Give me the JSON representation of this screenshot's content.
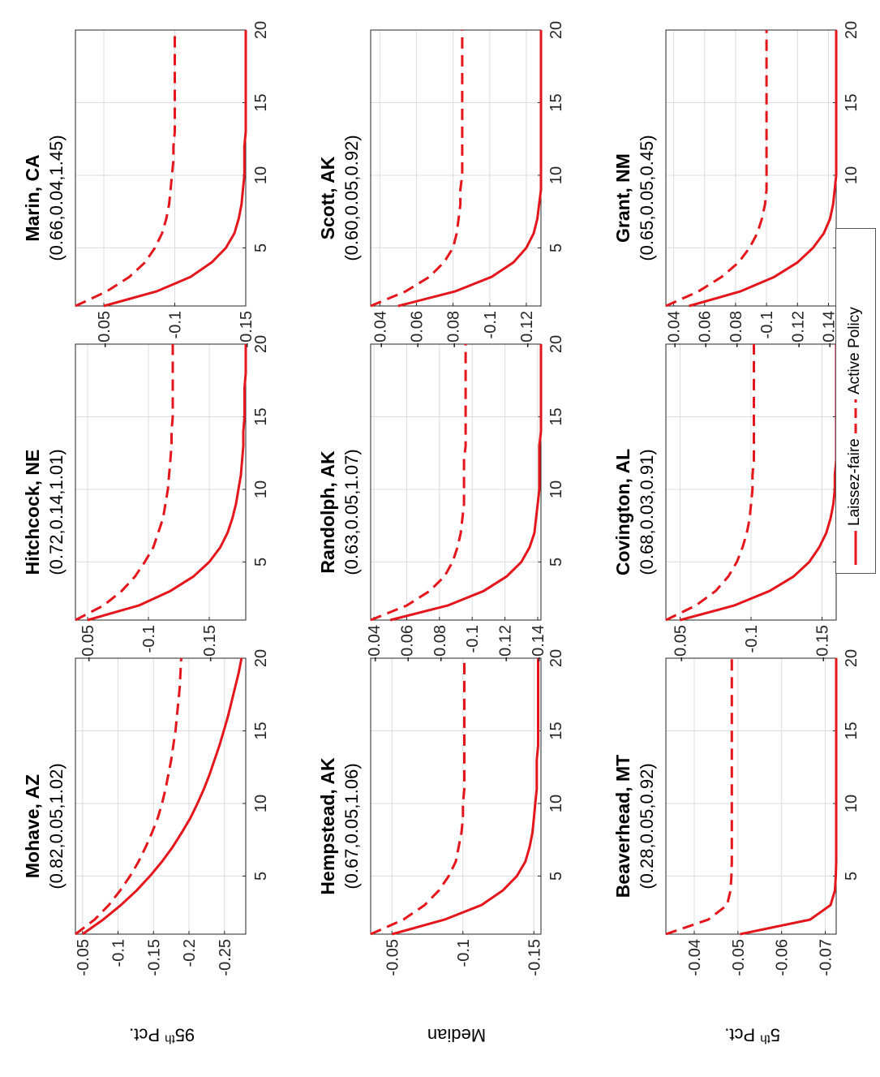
{
  "legend": {
    "solid_label": "Laissez-faire",
    "dashed_label": "Active Policy"
  },
  "colors": {
    "line": "#e5161b",
    "grid": "#dcdcdc",
    "axis": "#262626"
  },
  "row_labels": {
    "top": "95th Pct.",
    "top_base": "95",
    "top_sup": "th",
    "top_tail": " Pct.",
    "middle": "Median",
    "bottom": "5th Pct.",
    "bottom_base": "5",
    "bottom_sup": "th",
    "bottom_tail": " Pct."
  },
  "chart_data": [
    {
      "type": "line",
      "title": "Mohave, AZ",
      "subtitle": "(0.82,0.05,1.02)",
      "xlim": [
        1,
        20
      ],
      "ylim": [
        -0.28,
        -0.04
      ],
      "x_ticks": [
        5,
        10,
        15,
        20
      ],
      "x_tick_labels": [
        "5",
        "10",
        "15",
        "20"
      ],
      "y_ticks": [
        -0.05,
        -0.1,
        -0.15,
        -0.2,
        -0.25
      ],
      "y_tick_labels": [
        "-0.05",
        "-0.1",
        "-0.15",
        "-0.2",
        "-0.25"
      ],
      "grid": true,
      "x": [
        1,
        2,
        3,
        4,
        5,
        6,
        7,
        8,
        9,
        10,
        11,
        12,
        13,
        14,
        15,
        16,
        17,
        18,
        19,
        20
      ],
      "series": [
        {
          "name": "Laissez-faire",
          "style": "solid",
          "values": [
            -0.05,
            -0.079,
            -0.104,
            -0.126,
            -0.145,
            -0.162,
            -0.177,
            -0.19,
            -0.202,
            -0.212,
            -0.221,
            -0.229,
            -0.236,
            -0.243,
            -0.249,
            -0.255,
            -0.26,
            -0.265,
            -0.27,
            -0.274
          ]
        },
        {
          "name": "Active Policy",
          "style": "dashed",
          "values": [
            -0.04,
            -0.067,
            -0.087,
            -0.103,
            -0.117,
            -0.129,
            -0.139,
            -0.148,
            -0.156,
            -0.162,
            -0.167,
            -0.171,
            -0.175,
            -0.178,
            -0.181,
            -0.183,
            -0.185,
            -0.187,
            -0.188,
            -0.189
          ]
        }
      ]
    },
    {
      "type": "line",
      "title": "Hitchcock, NE",
      "subtitle": "(0.72,0.14,1.01)",
      "xlim": [
        1,
        20
      ],
      "ylim": [
        -0.18,
        -0.04
      ],
      "x_ticks": [
        5,
        10,
        15,
        20
      ],
      "x_tick_labels": [
        "5",
        "10",
        "15",
        "20"
      ],
      "y_ticks": [
        -0.05,
        -0.1,
        -0.15
      ],
      "y_tick_labels": [
        "-0.05",
        "-0.1",
        "-0.15"
      ],
      "grid": true,
      "x": [
        1,
        2,
        3,
        4,
        5,
        6,
        7,
        8,
        9,
        10,
        11,
        12,
        13,
        14,
        15,
        16,
        17,
        18,
        19,
        20
      ],
      "series": [
        {
          "name": "Laissez-faire",
          "style": "solid",
          "values": [
            -0.05,
            -0.092,
            -0.118,
            -0.137,
            -0.15,
            -0.159,
            -0.165,
            -0.169,
            -0.172,
            -0.174,
            -0.176,
            -0.177,
            -0.178,
            -0.178,
            -0.179,
            -0.179,
            -0.179,
            -0.18,
            -0.18,
            -0.18
          ]
        },
        {
          "name": "Active Policy",
          "style": "dashed",
          "values": [
            -0.04,
            -0.063,
            -0.078,
            -0.089,
            -0.097,
            -0.104,
            -0.108,
            -0.112,
            -0.114,
            -0.116,
            -0.117,
            -0.118,
            -0.119,
            -0.119,
            -0.12,
            -0.12,
            -0.12,
            -0.12,
            -0.12,
            -0.12
          ]
        }
      ]
    },
    {
      "type": "line",
      "title": "Marin, CA",
      "subtitle": "(0.66,0.04,1.45)",
      "xlim": [
        1,
        20
      ],
      "ylim": [
        -0.15,
        -0.03
      ],
      "x_ticks": [
        5,
        10,
        15,
        20
      ],
      "x_tick_labels": [
        "5",
        "10",
        "15",
        "20"
      ],
      "y_ticks": [
        -0.05,
        -0.1,
        -0.15
      ],
      "y_tick_labels": [
        "-0.05",
        "-0.1",
        "-0.15"
      ],
      "grid": true,
      "x": [
        1,
        2,
        3,
        4,
        5,
        6,
        7,
        8,
        9,
        10,
        11,
        12,
        13,
        14,
        15,
        16,
        17,
        18,
        19,
        20
      ],
      "series": [
        {
          "name": "Laissez-faire",
          "style": "solid",
          "values": [
            -0.05,
            -0.087,
            -0.111,
            -0.126,
            -0.136,
            -0.142,
            -0.145,
            -0.147,
            -0.148,
            -0.149,
            -0.149,
            -0.149,
            -0.15,
            -0.15,
            -0.15,
            -0.15,
            -0.15,
            -0.15,
            -0.15,
            -0.15
          ]
        },
        {
          "name": "Active Policy",
          "style": "dashed",
          "values": [
            -0.03,
            -0.052,
            -0.068,
            -0.079,
            -0.086,
            -0.091,
            -0.094,
            -0.096,
            -0.097,
            -0.098,
            -0.099,
            -0.099,
            -0.1,
            -0.1,
            -0.1,
            -0.1,
            -0.1,
            -0.1,
            -0.1,
            -0.1
          ]
        }
      ]
    },
    {
      "type": "line",
      "title": "Hempstead, AK",
      "subtitle": "(0.67,0.05,1.06)",
      "xlim": [
        1,
        20
      ],
      "ylim": [
        -0.155,
        -0.035
      ],
      "x_ticks": [
        5,
        10,
        15,
        20
      ],
      "x_tick_labels": [
        "5",
        "10",
        "15",
        "20"
      ],
      "y_ticks": [
        -0.05,
        -0.1,
        -0.15
      ],
      "y_tick_labels": [
        "-0.05",
        "-0.1",
        "-0.15"
      ],
      "grid": true,
      "x": [
        1,
        2,
        3,
        4,
        5,
        6,
        7,
        8,
        9,
        10,
        11,
        12,
        13,
        14,
        15,
        16,
        17,
        18,
        19,
        20
      ],
      "series": [
        {
          "name": "Laissez-faire",
          "style": "solid",
          "values": [
            -0.05,
            -0.087,
            -0.113,
            -0.128,
            -0.138,
            -0.144,
            -0.147,
            -0.149,
            -0.15,
            -0.151,
            -0.152,
            -0.152,
            -0.152,
            -0.153,
            -0.153,
            -0.153,
            -0.153,
            -0.153,
            -0.153,
            -0.153
          ]
        },
        {
          "name": "Active Policy",
          "style": "dashed",
          "values": [
            -0.035,
            -0.058,
            -0.073,
            -0.083,
            -0.09,
            -0.095,
            -0.097,
            -0.099,
            -0.1,
            -0.1,
            -0.101,
            -0.101,
            -0.101,
            -0.101,
            -0.101,
            -0.101,
            -0.101,
            -0.101,
            -0.101,
            -0.101
          ]
        }
      ]
    },
    {
      "type": "line",
      "title": "Randolph, AK",
      "subtitle": "(0.63,0.05,1.07)",
      "xlim": [
        1,
        20
      ],
      "ylim": [
        -0.142,
        -0.038
      ],
      "x_ticks": [
        5,
        10,
        15,
        20
      ],
      "x_tick_labels": [
        "5",
        "10",
        "15",
        "20"
      ],
      "y_ticks": [
        -0.04,
        -0.06,
        -0.08,
        -0.1,
        -0.12,
        -0.14
      ],
      "y_tick_labels": [
        "-0.04",
        "-0.06",
        "-0.08",
        "-0.1",
        "-0.12",
        "-0.14"
      ],
      "grid": true,
      "x": [
        1,
        2,
        3,
        4,
        5,
        6,
        7,
        8,
        9,
        10,
        11,
        12,
        13,
        14,
        15,
        16,
        17,
        18,
        19,
        20
      ],
      "series": [
        {
          "name": "Laissez-faire",
          "style": "solid",
          "values": [
            -0.05,
            -0.085,
            -0.107,
            -0.121,
            -0.13,
            -0.135,
            -0.138,
            -0.139,
            -0.14,
            -0.141,
            -0.141,
            -0.141,
            -0.141,
            -0.142,
            -0.142,
            -0.142,
            -0.142,
            -0.142,
            -0.142,
            -0.142
          ]
        },
        {
          "name": "Active Policy",
          "style": "dashed",
          "values": [
            -0.038,
            -0.06,
            -0.074,
            -0.083,
            -0.088,
            -0.091,
            -0.093,
            -0.094,
            -0.095,
            -0.095,
            -0.095,
            -0.095,
            -0.096,
            -0.096,
            -0.096,
            -0.096,
            -0.096,
            -0.096,
            -0.096,
            -0.096
          ]
        }
      ]
    },
    {
      "type": "line",
      "title": "Scott, AK",
      "subtitle": "(0.60,0.05,0.92)",
      "xlim": [
        1,
        20
      ],
      "ylim": [
        -0.128,
        -0.035
      ],
      "x_ticks": [
        5,
        10,
        15,
        20
      ],
      "x_tick_labels": [
        "5",
        "10",
        "15",
        "20"
      ],
      "y_ticks": [
        -0.04,
        -0.06,
        -0.08,
        -0.1,
        -0.12
      ],
      "y_tick_labels": [
        "-0.04",
        "-0.06",
        "-0.08",
        "-0.1",
        "-0.12"
      ],
      "grid": true,
      "x": [
        1,
        2,
        3,
        4,
        5,
        6,
        7,
        8,
        9,
        10,
        11,
        12,
        13,
        14,
        15,
        16,
        17,
        18,
        19,
        20
      ],
      "series": [
        {
          "name": "Laissez-faire",
          "style": "solid",
          "values": [
            -0.05,
            -0.081,
            -0.101,
            -0.113,
            -0.12,
            -0.124,
            -0.126,
            -0.127,
            -0.128,
            -0.128,
            -0.128,
            -0.128,
            -0.128,
            -0.128,
            -0.128,
            -0.128,
            -0.128,
            -0.128,
            -0.128,
            -0.128
          ]
        },
        {
          "name": "Active Policy",
          "style": "dashed",
          "values": [
            -0.035,
            -0.054,
            -0.067,
            -0.075,
            -0.08,
            -0.082,
            -0.083,
            -0.084,
            -0.084,
            -0.085,
            -0.085,
            -0.085,
            -0.085,
            -0.085,
            -0.085,
            -0.085,
            -0.085,
            -0.085,
            -0.085,
            -0.085
          ]
        }
      ]
    },
    {
      "type": "line",
      "title": "Beaverhead, MT",
      "subtitle": "(0.28,0.05,0.92)",
      "xlim": [
        1,
        20
      ],
      "ylim": [
        -0.0725,
        -0.0335
      ],
      "x_ticks": [
        5,
        10,
        15,
        20
      ],
      "x_tick_labels": [
        "5",
        "10",
        "15",
        "20"
      ],
      "y_ticks": [
        -0.04,
        -0.05,
        -0.06,
        -0.07
      ],
      "y_tick_labels": [
        "-0.04",
        "-0.05",
        "-0.06",
        "-0.07"
      ],
      "grid": true,
      "x": [
        1,
        2,
        3,
        4,
        5,
        6,
        7,
        8,
        9,
        10,
        11,
        12,
        13,
        14,
        15,
        16,
        17,
        18,
        19,
        20
      ],
      "series": [
        {
          "name": "Laissez-faire",
          "style": "solid",
          "values": [
            -0.0505,
            -0.0665,
            -0.0712,
            -0.0722,
            -0.0724,
            -0.0725,
            -0.0725,
            -0.0725,
            -0.0725,
            -0.0725,
            -0.0725,
            -0.0725,
            -0.0725,
            -0.0725,
            -0.0725,
            -0.0725,
            -0.0725,
            -0.0725,
            -0.0725,
            -0.0725
          ]
        },
        {
          "name": "Active Policy",
          "style": "dashed",
          "values": [
            -0.0335,
            -0.0432,
            -0.0475,
            -0.0483,
            -0.0485,
            -0.0486,
            -0.0486,
            -0.0486,
            -0.0486,
            -0.0486,
            -0.0486,
            -0.0486,
            -0.0486,
            -0.0486,
            -0.0486,
            -0.0486,
            -0.0486,
            -0.0486,
            -0.0486,
            -0.0486
          ]
        }
      ]
    },
    {
      "type": "line",
      "title": "Covington, AL",
      "subtitle": "(0.68,0.03,0.91)",
      "xlim": [
        1,
        20
      ],
      "ylim": [
        -0.16,
        -0.04
      ],
      "x_ticks": [
        5,
        10,
        15,
        20
      ],
      "x_tick_labels": [
        "5",
        "10",
        "15",
        "20"
      ],
      "y_ticks": [
        -0.05,
        -0.1,
        -0.15
      ],
      "y_tick_labels": [
        "-0.05",
        "-0.1",
        "-0.15"
      ],
      "grid": true,
      "x": [
        1,
        2,
        3,
        4,
        5,
        6,
        7,
        8,
        9,
        10,
        11,
        12,
        13,
        14,
        15,
        16,
        17,
        18,
        19,
        20
      ],
      "series": [
        {
          "name": "Laissez-faire",
          "style": "solid",
          "values": [
            -0.05,
            -0.088,
            -0.113,
            -0.13,
            -0.141,
            -0.148,
            -0.153,
            -0.156,
            -0.158,
            -0.159,
            -0.159,
            -0.16,
            -0.16,
            -0.16,
            -0.16,
            -0.16,
            -0.16,
            -0.16,
            -0.16,
            -0.16
          ]
        },
        {
          "name": "Active Policy",
          "style": "dashed",
          "values": [
            -0.04,
            -0.061,
            -0.075,
            -0.084,
            -0.09,
            -0.094,
            -0.097,
            -0.099,
            -0.1,
            -0.101,
            -0.101,
            -0.102,
            -0.102,
            -0.102,
            -0.102,
            -0.102,
            -0.102,
            -0.102,
            -0.102,
            -0.102
          ]
        }
      ]
    },
    {
      "type": "line",
      "title": "Grant, NM",
      "subtitle": "(0.65,0.05,0.45)",
      "xlim": [
        1,
        20
      ],
      "ylim": [
        -0.145,
        -0.035
      ],
      "x_ticks": [
        5,
        10,
        15,
        20
      ],
      "x_tick_labels": [
        "5",
        "10",
        "15",
        "20"
      ],
      "y_ticks": [
        -0.04,
        -0.06,
        -0.08,
        -0.1,
        -0.12,
        -0.14
      ],
      "y_tick_labels": [
        "-0.04",
        "-0.06",
        "-0.08",
        "-0.1",
        "-0.12",
        "-0.14"
      ],
      "grid": true,
      "x": [
        1,
        2,
        3,
        4,
        5,
        6,
        7,
        8,
        9,
        10,
        11,
        12,
        13,
        14,
        15,
        16,
        17,
        18,
        19,
        20
      ],
      "series": [
        {
          "name": "Laissez-faire",
          "style": "solid",
          "values": [
            -0.05,
            -0.083,
            -0.105,
            -0.12,
            -0.13,
            -0.137,
            -0.141,
            -0.143,
            -0.144,
            -0.145,
            -0.145,
            -0.145,
            -0.145,
            -0.145,
            -0.145,
            -0.145,
            -0.145,
            -0.145,
            -0.145,
            -0.145
          ]
        },
        {
          "name": "Active Policy",
          "style": "dashed",
          "values": [
            -0.035,
            -0.056,
            -0.071,
            -0.082,
            -0.089,
            -0.094,
            -0.097,
            -0.099,
            -0.1,
            -0.1,
            -0.1,
            -0.1,
            -0.1,
            -0.1,
            -0.1,
            -0.1,
            -0.1,
            -0.1,
            -0.1,
            -0.1
          ]
        }
      ]
    }
  ]
}
